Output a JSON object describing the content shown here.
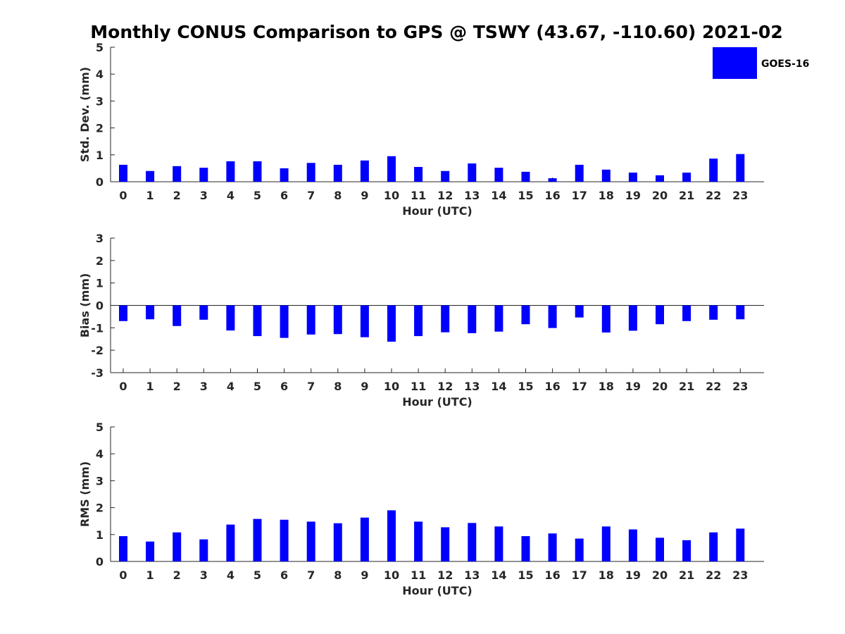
{
  "title": "Monthly CONUS Comparison to GPS @ TSWY (43.67, -110.60) 2021-02",
  "legend": {
    "label": "GOES-16",
    "color": "#0000ff",
    "placement": "top-right"
  },
  "chart_data": [
    {
      "type": "bar",
      "name": "std",
      "categories": [
        "0",
        "1",
        "2",
        "3",
        "4",
        "5",
        "6",
        "7",
        "8",
        "9",
        "10",
        "11",
        "12",
        "13",
        "14",
        "15",
        "16",
        "17",
        "18",
        "19",
        "20",
        "21",
        "22",
        "23"
      ],
      "series": [
        {
          "name": "GOES-16",
          "color": "#0000ff",
          "values": [
            0.63,
            0.4,
            0.58,
            0.52,
            0.76,
            0.76,
            0.5,
            0.7,
            0.63,
            0.79,
            0.95,
            0.55,
            0.4,
            0.68,
            0.52,
            0.37,
            0.13,
            0.63,
            0.45,
            0.34,
            0.24,
            0.34,
            0.86,
            1.03
          ]
        }
      ],
      "xlabel": "Hour (UTC)",
      "ylabel": "Std. Dev. (mm)",
      "ylim": [
        0,
        5
      ],
      "yticks": [
        "0",
        "1",
        "2",
        "3",
        "4",
        "5"
      ],
      "grid": false
    },
    {
      "type": "bar",
      "name": "bias",
      "categories": [
        "0",
        "1",
        "2",
        "3",
        "4",
        "5",
        "6",
        "7",
        "8",
        "9",
        "10",
        "11",
        "12",
        "13",
        "14",
        "15",
        "16",
        "17",
        "18",
        "19",
        "20",
        "21",
        "22",
        "23"
      ],
      "series": [
        {
          "name": "GOES-16",
          "color": "#0000ff",
          "values": [
            -0.7,
            -0.62,
            -0.92,
            -0.64,
            -1.12,
            -1.37,
            -1.45,
            -1.3,
            -1.28,
            -1.42,
            -1.62,
            -1.37,
            -1.2,
            -1.24,
            -1.17,
            -0.84,
            -1.01,
            -0.54,
            -1.21,
            -1.13,
            -0.84,
            -0.7,
            -0.64,
            -0.62
          ]
        }
      ],
      "xlabel": "Hour (UTC)",
      "ylabel": "Bias (mm)",
      "ylim": [
        -3,
        3
      ],
      "yticks": [
        "-3",
        "-2",
        "-1",
        "0",
        "1",
        "2",
        "3"
      ],
      "grid": false
    },
    {
      "type": "bar",
      "name": "rms",
      "categories": [
        "0",
        "1",
        "2",
        "3",
        "4",
        "5",
        "6",
        "7",
        "8",
        "9",
        "10",
        "11",
        "12",
        "13",
        "14",
        "15",
        "16",
        "17",
        "18",
        "19",
        "20",
        "21",
        "22",
        "23"
      ],
      "series": [
        {
          "name": "GOES-16",
          "color": "#0000ff",
          "values": [
            0.94,
            0.74,
            1.08,
            0.82,
            1.37,
            1.58,
            1.55,
            1.48,
            1.42,
            1.63,
            1.9,
            1.48,
            1.27,
            1.43,
            1.3,
            0.94,
            1.04,
            0.85,
            1.3,
            1.19,
            0.88,
            0.79,
            1.08,
            1.22
          ]
        }
      ],
      "xlabel": "Hour (UTC)",
      "ylabel": "RMS (mm)",
      "ylim": [
        0,
        5
      ],
      "yticks": [
        "0",
        "1",
        "2",
        "3",
        "4",
        "5"
      ],
      "grid": false
    }
  ]
}
